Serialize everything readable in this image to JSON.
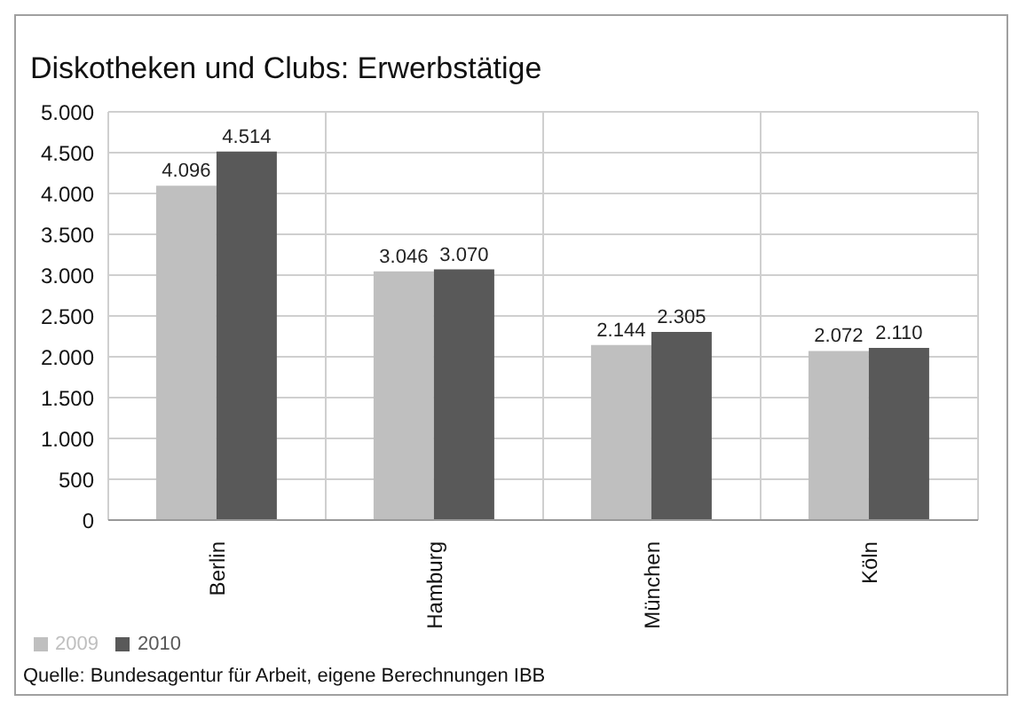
{
  "chart_data": {
    "type": "bar",
    "title": "Diskotheken und Clubs: Erwerbstätige",
    "categories": [
      "Berlin",
      "Hamburg",
      "München",
      "Köln"
    ],
    "series": [
      {
        "name": "2009",
        "color": "#bfbfbf",
        "values": [
          4096,
          3046,
          2144,
          2072
        ],
        "value_labels": [
          "4.096",
          "3.046",
          "2.144",
          "2.072"
        ]
      },
      {
        "name": "2010",
        "color": "#595959",
        "values": [
          4514,
          3070,
          2305,
          2110
        ],
        "value_labels": [
          "4.514",
          "3.070",
          "2.305",
          "2.110"
        ]
      }
    ],
    "ylim": [
      0,
      5000
    ],
    "yticks": [
      {
        "value": 0,
        "label": "0"
      },
      {
        "value": 500,
        "label": "500"
      },
      {
        "value": 1000,
        "label": "1.000"
      },
      {
        "value": 1500,
        "label": "1.500"
      },
      {
        "value": 2000,
        "label": "2.000"
      },
      {
        "value": 2500,
        "label": "2.500"
      },
      {
        "value": 3000,
        "label": "3.000"
      },
      {
        "value": 3500,
        "label": "3.500"
      },
      {
        "value": 4000,
        "label": "4.000"
      },
      {
        "value": 4500,
        "label": "4.500"
      },
      {
        "value": 5000,
        "label": "5.000"
      }
    ],
    "grid": true,
    "legend": "bottom left",
    "annotations": [
      "Quelle: Bundesagentur für Arbeit, eigene Berechnungen IBB"
    ]
  }
}
